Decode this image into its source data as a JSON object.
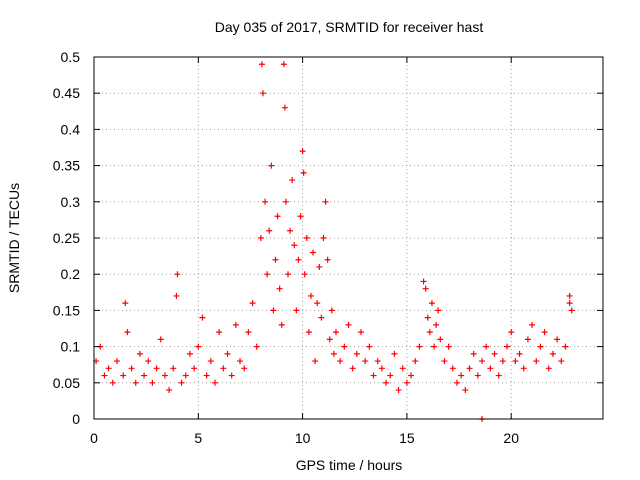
{
  "chart_data": {
    "type": "scatter",
    "title": "Day 035 of 2017, SRMTID for receiver hast",
    "xlabel": "GPS time / hours",
    "ylabel": "SRMTID / TECUs",
    "xlim": [
      0,
      24.4
    ],
    "ylim": [
      0,
      0.5
    ],
    "grid": true,
    "marker": "+",
    "color": "#ff0000",
    "xticks": [
      {
        "value": 0,
        "label": "0"
      },
      {
        "value": 5,
        "label": "5"
      },
      {
        "value": 10,
        "label": "10"
      },
      {
        "value": 15,
        "label": "15"
      },
      {
        "value": 20,
        "label": "20"
      }
    ],
    "yticks": [
      {
        "value": 0,
        "label": "0"
      },
      {
        "value": 0.05,
        "label": "0.05"
      },
      {
        "value": 0.1,
        "label": "0.1"
      },
      {
        "value": 0.15,
        "label": "0.15"
      },
      {
        "value": 0.2,
        "label": "0.2"
      },
      {
        "value": 0.25,
        "label": "0.25"
      },
      {
        "value": 0.3,
        "label": "0.3"
      },
      {
        "value": 0.35,
        "label": "0.35"
      },
      {
        "value": 0.4,
        "label": "0.4"
      },
      {
        "value": 0.45,
        "label": "0.45"
      },
      {
        "value": 0.5,
        "label": "0.5"
      }
    ],
    "series": [
      {
        "name": "SRMTID",
        "x": [
          0.1,
          0.3,
          0.5,
          0.7,
          0.9,
          1.1,
          1.4,
          1.5,
          1.6,
          1.8,
          2.0,
          2.2,
          2.4,
          2.6,
          2.8,
          3.0,
          3.2,
          3.4,
          3.6,
          3.8,
          3.95,
          4.0,
          4.2,
          4.4,
          4.6,
          4.8,
          5.0,
          5.2,
          5.4,
          5.6,
          5.8,
          6.0,
          6.2,
          6.4,
          6.6,
          6.8,
          7.0,
          7.2,
          7.4,
          7.6,
          7.8,
          8.0,
          8.05,
          8.1,
          8.2,
          8.3,
          8.4,
          8.5,
          8.6,
          8.7,
          8.8,
          8.9,
          9.0,
          9.1,
          9.15,
          9.2,
          9.3,
          9.4,
          9.5,
          9.6,
          9.7,
          9.8,
          9.9,
          10.0,
          10.05,
          10.1,
          10.2,
          10.3,
          10.4,
          10.5,
          10.6,
          10.7,
          10.8,
          10.9,
          11.0,
          11.1,
          11.2,
          11.3,
          11.4,
          11.5,
          11.6,
          11.8,
          12.0,
          12.2,
          12.4,
          12.6,
          12.8,
          13.0,
          13.2,
          13.4,
          13.6,
          13.8,
          14.0,
          14.2,
          14.4,
          14.6,
          14.8,
          15.0,
          15.2,
          15.4,
          15.6,
          15.8,
          15.9,
          16.0,
          16.1,
          16.2,
          16.3,
          16.4,
          16.5,
          16.6,
          16.8,
          17.0,
          17.2,
          17.4,
          17.6,
          17.8,
          18.0,
          18.2,
          18.4,
          18.6,
          18.6,
          18.8,
          19.0,
          19.2,
          19.4,
          19.6,
          19.8,
          20.0,
          20.2,
          20.4,
          20.6,
          20.8,
          21.0,
          21.2,
          21.4,
          21.6,
          21.8,
          22.0,
          22.2,
          22.4,
          22.6,
          22.8,
          22.8,
          22.9
        ],
        "y": [
          0.08,
          0.1,
          0.06,
          0.07,
          0.05,
          0.08,
          0.06,
          0.16,
          0.12,
          0.07,
          0.05,
          0.09,
          0.06,
          0.08,
          0.05,
          0.07,
          0.11,
          0.06,
          0.04,
          0.07,
          0.17,
          0.2,
          0.05,
          0.06,
          0.09,
          0.07,
          0.1,
          0.14,
          0.06,
          0.08,
          0.05,
          0.12,
          0.07,
          0.09,
          0.06,
          0.13,
          0.08,
          0.07,
          0.12,
          0.16,
          0.1,
          0.25,
          0.49,
          0.45,
          0.3,
          0.2,
          0.26,
          0.35,
          0.15,
          0.22,
          0.28,
          0.18,
          0.13,
          0.49,
          0.43,
          0.3,
          0.2,
          0.26,
          0.33,
          0.24,
          0.15,
          0.22,
          0.28,
          0.37,
          0.34,
          0.2,
          0.25,
          0.12,
          0.17,
          0.23,
          0.08,
          0.16,
          0.21,
          0.14,
          0.25,
          0.3,
          0.22,
          0.11,
          0.15,
          0.09,
          0.12,
          0.08,
          0.1,
          0.13,
          0.07,
          0.09,
          0.12,
          0.08,
          0.1,
          0.06,
          0.08,
          0.07,
          0.05,
          0.06,
          0.09,
          0.04,
          0.07,
          0.05,
          0.06,
          0.08,
          0.1,
          0.19,
          0.18,
          0.14,
          0.12,
          0.16,
          0.1,
          0.13,
          0.15,
          0.11,
          0.08,
          0.1,
          0.07,
          0.05,
          0.06,
          0.04,
          0.07,
          0.09,
          0.06,
          0.08,
          0.0,
          0.1,
          0.07,
          0.09,
          0.06,
          0.08,
          0.1,
          0.12,
          0.08,
          0.09,
          0.07,
          0.11,
          0.13,
          0.08,
          0.1,
          0.12,
          0.07,
          0.09,
          0.11,
          0.08,
          0.1,
          0.17,
          0.16,
          0.15
        ]
      }
    ]
  }
}
